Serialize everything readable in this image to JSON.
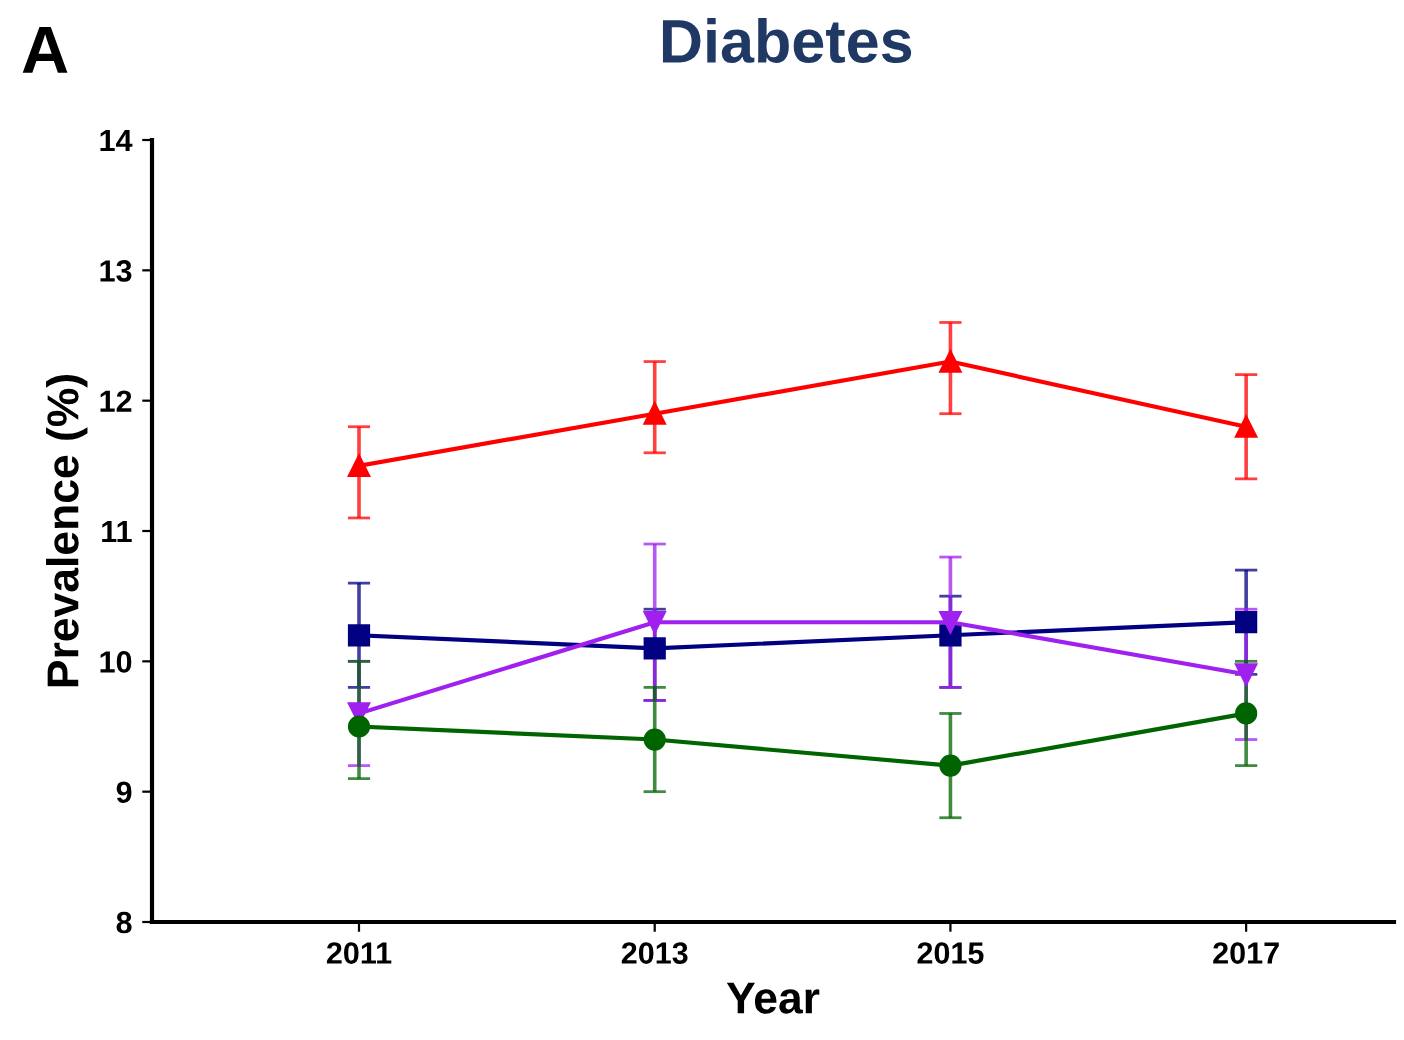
{
  "chart_data": {
    "type": "line",
    "title": "Diabetes",
    "xlabel": "Year",
    "ylabel": "Prevalence (%)",
    "annotations": [
      "A"
    ],
    "x": [
      2011,
      2013,
      2015,
      2017
    ],
    "xlim": [
      2009.6,
      2018.0
    ],
    "xticks": [
      2011,
      2013,
      2015,
      2017
    ],
    "ylim": [
      8,
      14
    ],
    "yticks": [
      8,
      9,
      10,
      11,
      12,
      13,
      14
    ],
    "grid": false,
    "legend": false,
    "line_style": "solid",
    "series": [
      {
        "color": "#ff0000",
        "marker": "triangle",
        "values": [
          11.5,
          11.9,
          12.3,
          11.8
        ],
        "errors": [
          [
            11.1,
            11.8
          ],
          [
            11.6,
            12.3
          ],
          [
            11.9,
            12.6
          ],
          [
            11.4,
            12.2
          ]
        ]
      },
      {
        "color": "#000080",
        "marker": "square",
        "values": [
          10.2,
          10.1,
          10.2,
          10.3
        ],
        "errors": [
          [
            9.8,
            10.6
          ],
          [
            9.7,
            10.4
          ],
          [
            9.8,
            10.5
          ],
          [
            9.9,
            10.7
          ]
        ]
      },
      {
        "color": "#a020f0",
        "marker": "triangle_down",
        "values": [
          9.6,
          10.3,
          10.3,
          9.9
        ],
        "errors": [
          [
            9.2,
            10.0
          ],
          [
            9.7,
            10.9
          ],
          [
            9.8,
            10.8
          ],
          [
            9.4,
            10.4
          ]
        ]
      },
      {
        "color": "#006400",
        "marker": "circle",
        "values": [
          9.5,
          9.4,
          9.2,
          9.6
        ],
        "errors": [
          [
            9.1,
            10.0
          ],
          [
            9.0,
            9.8
          ],
          [
            8.8,
            9.6
          ],
          [
            9.2,
            10.0
          ]
        ]
      }
    ]
  }
}
